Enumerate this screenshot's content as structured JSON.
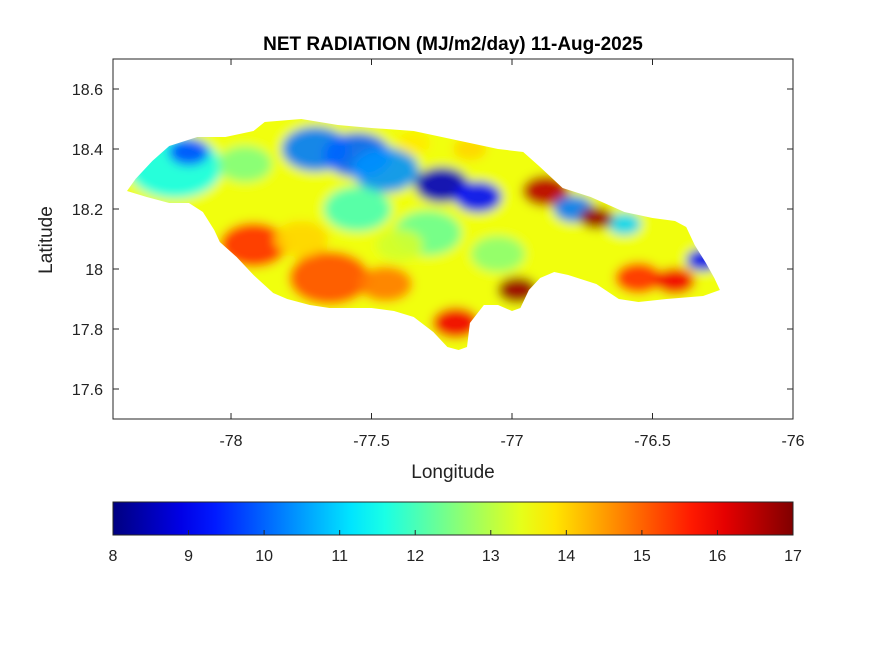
{
  "title": "NET RADIATION (MJ/m2/day) 11-Aug-2025",
  "chart_data": {
    "type": "heatmap",
    "title": "NET RADIATION (MJ/m2/day) 11-Aug-2025",
    "xlabel": "Longitude",
    "ylabel": "Latitude",
    "xlim": [
      -78.42,
      -76.0
    ],
    "ylim": [
      17.5,
      18.7
    ],
    "x_ticks": [
      -78,
      -77.5,
      -77,
      -76.5,
      -76
    ],
    "x_tick_labels": [
      "-78",
      "-77.5",
      "-77",
      "-76.5",
      "-76"
    ],
    "y_ticks": [
      17.6,
      17.8,
      18.0,
      18.2,
      18.4,
      18.6
    ],
    "y_tick_labels": [
      "17.6",
      "17.8",
      "18",
      "18.2",
      "18.4",
      "18.6"
    ],
    "colormap": "jet",
    "colorbar": {
      "orientation": "horizontal",
      "placement": "bottom",
      "range": [
        8,
        17
      ],
      "ticks": [
        8,
        9,
        10,
        11,
        12,
        13,
        14,
        15,
        16,
        17
      ],
      "tick_labels": [
        "8",
        "9",
        "10",
        "11",
        "12",
        "13",
        "14",
        "15",
        "16",
        "17"
      ]
    },
    "region_outline": [
      [
        -78.37,
        18.26
      ],
      [
        -78.34,
        18.3
      ],
      [
        -78.28,
        18.36
      ],
      [
        -78.22,
        18.41
      ],
      [
        -78.12,
        18.44
      ],
      [
        -78.02,
        18.44
      ],
      [
        -77.92,
        18.46
      ],
      [
        -77.88,
        18.49
      ],
      [
        -77.75,
        18.5
      ],
      [
        -77.62,
        18.48
      ],
      [
        -77.5,
        18.47
      ],
      [
        -77.35,
        18.46
      ],
      [
        -77.2,
        18.43
      ],
      [
        -77.05,
        18.4
      ],
      [
        -76.96,
        18.39
      ],
      [
        -76.9,
        18.34
      ],
      [
        -76.82,
        18.27
      ],
      [
        -76.72,
        18.24
      ],
      [
        -76.6,
        18.19
      ],
      [
        -76.5,
        18.17
      ],
      [
        -76.42,
        18.16
      ],
      [
        -76.38,
        18.14
      ],
      [
        -76.35,
        18.08
      ],
      [
        -76.31,
        18.02
      ],
      [
        -76.28,
        17.97
      ],
      [
        -76.26,
        17.93
      ],
      [
        -76.32,
        17.91
      ],
      [
        -76.45,
        17.9
      ],
      [
        -76.55,
        17.89
      ],
      [
        -76.62,
        17.9
      ],
      [
        -76.7,
        17.95
      ],
      [
        -76.8,
        17.98
      ],
      [
        -76.85,
        17.99
      ],
      [
        -76.9,
        17.97
      ],
      [
        -76.94,
        17.93
      ],
      [
        -76.97,
        17.87
      ],
      [
        -77.0,
        17.86
      ],
      [
        -77.05,
        17.88
      ],
      [
        -77.1,
        17.88
      ],
      [
        -77.15,
        17.82
      ],
      [
        -77.16,
        17.74
      ],
      [
        -77.19,
        17.73
      ],
      [
        -77.23,
        17.74
      ],
      [
        -77.28,
        17.79
      ],
      [
        -77.35,
        17.84
      ],
      [
        -77.42,
        17.86
      ],
      [
        -77.5,
        17.87
      ],
      [
        -77.58,
        17.87
      ],
      [
        -77.65,
        17.87
      ],
      [
        -77.72,
        17.88
      ],
      [
        -77.8,
        17.9
      ],
      [
        -77.85,
        17.92
      ],
      [
        -77.92,
        17.98
      ],
      [
        -77.98,
        18.04
      ],
      [
        -78.04,
        18.09
      ],
      [
        -78.06,
        18.13
      ],
      [
        -78.1,
        18.19
      ],
      [
        -78.15,
        18.22
      ],
      [
        -78.22,
        18.22
      ],
      [
        -78.3,
        18.24
      ]
    ],
    "field_features": [
      {
        "lon": -78.2,
        "lat": 18.34,
        "value": 11.5,
        "spread": 0.14
      },
      {
        "lon": -78.15,
        "lat": 18.39,
        "value": 9.8,
        "spread": 0.06
      },
      {
        "lon": -77.95,
        "lat": 18.35,
        "value": 12.5,
        "spread": 0.08
      },
      {
        "lon": -77.7,
        "lat": 18.4,
        "value": 10.2,
        "spread": 0.1
      },
      {
        "lon": -77.55,
        "lat": 18.38,
        "value": 10.0,
        "spread": 0.1
      },
      {
        "lon": -77.45,
        "lat": 18.33,
        "value": 10.4,
        "spread": 0.1
      },
      {
        "lon": -77.25,
        "lat": 18.28,
        "value": 8.6,
        "spread": 0.08
      },
      {
        "lon": -77.12,
        "lat": 18.24,
        "value": 9.2,
        "spread": 0.07
      },
      {
        "lon": -77.55,
        "lat": 18.2,
        "value": 12.0,
        "spread": 0.1
      },
      {
        "lon": -77.3,
        "lat": 18.12,
        "value": 12.3,
        "spread": 0.1
      },
      {
        "lon": -77.05,
        "lat": 18.05,
        "value": 12.6,
        "spread": 0.08
      },
      {
        "lon": -77.35,
        "lat": 18.42,
        "value": 13.8,
        "spread": 0.05
      },
      {
        "lon": -77.15,
        "lat": 18.4,
        "value": 14.0,
        "spread": 0.05
      },
      {
        "lon": -76.88,
        "lat": 18.26,
        "value": 16.5,
        "spread": 0.07
      },
      {
        "lon": -76.78,
        "lat": 18.2,
        "value": 10.2,
        "spread": 0.06
      },
      {
        "lon": -76.6,
        "lat": 18.15,
        "value": 11.0,
        "spread": 0.05
      },
      {
        "lon": -76.7,
        "lat": 18.17,
        "value": 16.8,
        "spread": 0.05
      },
      {
        "lon": -76.32,
        "lat": 18.03,
        "value": 9.2,
        "spread": 0.05
      },
      {
        "lon": -76.55,
        "lat": 17.97,
        "value": 15.5,
        "spread": 0.07
      },
      {
        "lon": -76.42,
        "lat": 17.96,
        "value": 16.0,
        "spread": 0.06
      },
      {
        "lon": -76.75,
        "lat": 17.95,
        "value": 13.5,
        "spread": 0.06
      },
      {
        "lon": -76.98,
        "lat": 17.93,
        "value": 16.8,
        "spread": 0.06
      },
      {
        "lon": -77.2,
        "lat": 17.82,
        "value": 16.0,
        "spread": 0.07
      },
      {
        "lon": -77.65,
        "lat": 17.97,
        "value": 15.2,
        "spread": 0.12
      },
      {
        "lon": -77.92,
        "lat": 18.08,
        "value": 15.5,
        "spread": 0.1
      },
      {
        "lon": -77.75,
        "lat": 18.1,
        "value": 14.0,
        "spread": 0.08
      },
      {
        "lon": -77.45,
        "lat": 17.95,
        "value": 14.8,
        "spread": 0.08
      },
      {
        "lon": -77.4,
        "lat": 18.08,
        "value": 13.2,
        "spread": 0.07
      }
    ]
  }
}
